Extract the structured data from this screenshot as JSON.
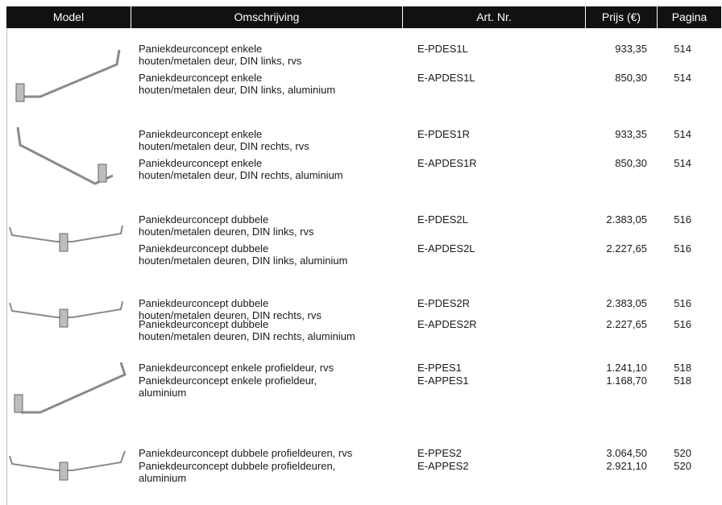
{
  "table": {
    "header": [
      "Model",
      "Omschrijving",
      "Art. Nr.",
      "Prijs (€)",
      "Pagina"
    ],
    "rows": [
      {
        "description": [
          "Paniekdeurconcept enkele",
          "houten/metalen deur, DIN links, rvs"
        ],
        "art": "E-PDES1L",
        "price": "933,35",
        "page": "514"
      },
      {
        "description": [
          "Paniekdeurconcept enkele",
          "houten/metalen deur, DIN links, aluminium"
        ],
        "art": "E-APDES1L",
        "price": "850,30",
        "page": "514"
      },
      {
        "description": [
          "Paniekdeurconcept enkele",
          "houten/metalen deur, DIN rechts, rvs"
        ],
        "art": "E-PDES1R",
        "price": "933,35",
        "page": "514"
      },
      {
        "description": [
          "Paniekdeurconcept enkele",
          "houten/metalen deur, DIN rechts, aluminium"
        ],
        "art": "E-APDES1R",
        "price": "850,30",
        "page": "514"
      },
      {
        "description": [
          "Paniekdeurconcept dubbele",
          "houten/metalen deuren, DIN links, rvs"
        ],
        "art": "E-PDES2L",
        "price": "2.383,05",
        "page": "516"
      },
      {
        "description": [
          "Paniekdeurconcept dubbele",
          "houten/metalen deuren, DIN links, aluminium"
        ],
        "art": "E-APDES2L",
        "price": "2.227,65",
        "page": "516"
      },
      {
        "description": [
          "Paniekdeurconcept dubbele",
          "houten/metalen deuren, DIN rechts, rvs"
        ],
        "art": "E-PDES2R",
        "price": "2.383,05",
        "page": "516"
      },
      {
        "description": [
          "Paniekdeurconcept dubbele",
          "houten/metalen deuren, DIN rechts, aluminium"
        ],
        "art": "E-APDES2R",
        "price": "2.227,65",
        "page": "516"
      },
      {
        "description": [
          "Paniekdeurconcept enkele profieldeur, rvs"
        ],
        "art": "E-PPES1",
        "price": "1.241,10",
        "page": "518"
      },
      {
        "description": [
          "Paniekdeurconcept enkele profieldeur,",
          "aluminium"
        ],
        "art": "E-APPES1",
        "price": "1.168,70",
        "page": "518"
      },
      {
        "description": [
          "Paniekdeurconcept dubbele profieldeuren, rvs"
        ],
        "art": "E-PPES2",
        "price": "3.064,50",
        "page": "520"
      },
      {
        "description": [
          "Paniekdeurconcept dubbele profieldeuren,",
          "aluminium"
        ],
        "art": "E-APPES2",
        "price": "2.921,10",
        "page": "520"
      }
    ]
  }
}
